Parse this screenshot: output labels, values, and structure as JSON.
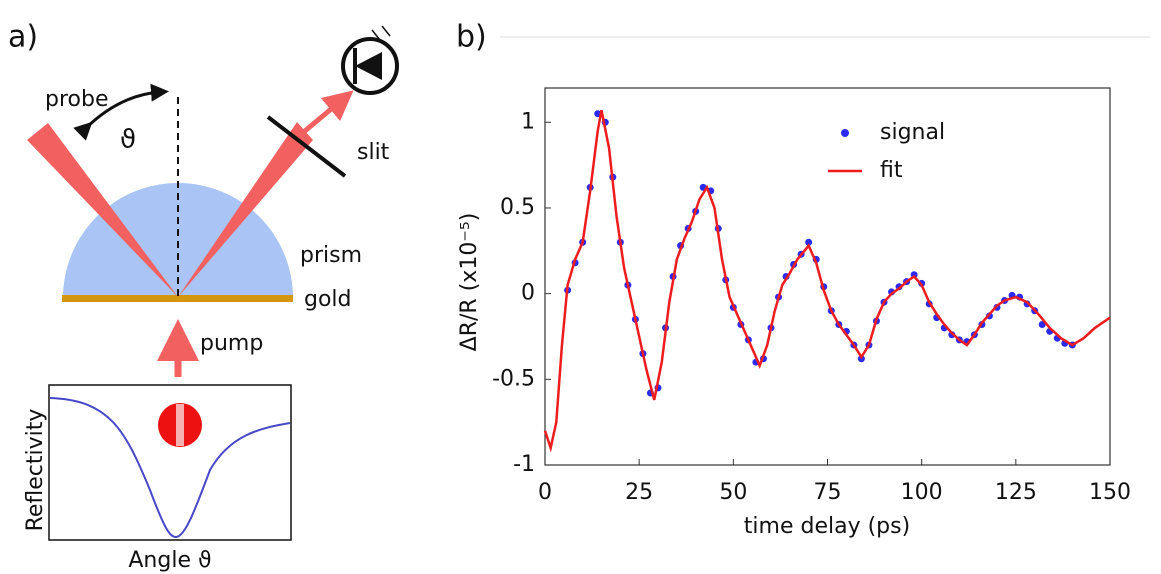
{
  "panels": {
    "a": "a)",
    "b": "b)"
  },
  "diagram": {
    "probe": "probe",
    "angle": "ϑ",
    "slit": "slit",
    "prism": "prism",
    "gold": "gold",
    "pump": "pump",
    "inset_ylabel": "Reflectivity",
    "inset_xlabel": "Angle ϑ"
  },
  "chart_data": {
    "type": "scatter",
    "xlabel": "time delay (ps)",
    "ylabel": "ΔR/R (x10⁻⁵)",
    "xlim": [
      0,
      150
    ],
    "xticks": [
      0,
      25,
      50,
      75,
      100,
      125,
      150
    ],
    "ylim": [
      -1,
      1.2
    ],
    "yticks": [
      -1,
      -0.5,
      0,
      0.5,
      1
    ],
    "legend": "upper right",
    "series": [
      {
        "name": "signal",
        "color": "#2b2bf0",
        "mode": "markers",
        "x": [
          6,
          8,
          10,
          12,
          14,
          16,
          18,
          20,
          22,
          24,
          26,
          28,
          30,
          32,
          34,
          36,
          38,
          40,
          42,
          44,
          46,
          48,
          50,
          52,
          54,
          56,
          58,
          60,
          62,
          64,
          66,
          68,
          70,
          72,
          74,
          76,
          78,
          80,
          82,
          84,
          86,
          88,
          90,
          92,
          94,
          96,
          98,
          100,
          102,
          104,
          106,
          108,
          110,
          112,
          114,
          116,
          118,
          120,
          122,
          124,
          126,
          128,
          130,
          132,
          134,
          136,
          138,
          140
        ],
        "values": [
          0.02,
          0.18,
          0.3,
          0.62,
          1.05,
          1.0,
          0.68,
          0.3,
          0.05,
          -0.15,
          -0.35,
          -0.58,
          -0.55,
          -0.2,
          0.1,
          0.28,
          0.38,
          0.48,
          0.62,
          0.6,
          0.38,
          0.08,
          -0.08,
          -0.18,
          -0.27,
          -0.4,
          -0.38,
          -0.2,
          -0.02,
          0.1,
          0.17,
          0.23,
          0.3,
          0.2,
          0.04,
          -0.1,
          -0.18,
          -0.22,
          -0.3,
          -0.38,
          -0.3,
          -0.16,
          -0.05,
          0.01,
          0.04,
          0.07,
          0.11,
          0.06,
          -0.06,
          -0.14,
          -0.2,
          -0.24,
          -0.27,
          -0.28,
          -0.24,
          -0.18,
          -0.13,
          -0.08,
          -0.04,
          -0.01,
          -0.02,
          -0.06,
          -0.1,
          -0.18,
          -0.22,
          -0.26,
          -0.29,
          -0.3
        ]
      },
      {
        "name": "fit",
        "color": "#ee1c1c",
        "mode": "lines",
        "x": [
          0,
          1.5,
          3,
          4.5,
          6,
          8,
          10,
          12,
          14,
          15,
          17,
          19,
          21,
          23,
          25,
          27,
          29,
          31,
          33,
          35,
          37,
          39,
          41,
          43,
          45,
          47,
          49,
          51,
          53,
          55,
          57,
          59,
          61,
          63,
          65,
          67,
          70,
          72,
          74,
          76,
          78,
          80,
          82,
          84,
          86,
          88,
          90,
          92,
          94,
          96,
          98,
          100,
          102,
          104,
          106,
          108,
          110,
          112,
          114,
          116,
          118,
          120,
          122,
          125,
          128,
          131,
          134,
          137,
          140,
          143,
          146,
          150
        ],
        "values": [
          -0.8,
          -0.9,
          -0.75,
          -0.3,
          0.05,
          0.2,
          0.3,
          0.6,
          0.95,
          1.07,
          0.85,
          0.45,
          0.15,
          -0.05,
          -0.25,
          -0.45,
          -0.62,
          -0.4,
          -0.05,
          0.2,
          0.32,
          0.42,
          0.55,
          0.62,
          0.5,
          0.2,
          -0.02,
          -0.12,
          -0.22,
          -0.32,
          -0.42,
          -0.3,
          -0.1,
          0.05,
          0.12,
          0.2,
          0.28,
          0.18,
          0.02,
          -0.1,
          -0.18,
          -0.24,
          -0.3,
          -0.37,
          -0.3,
          -0.15,
          -0.05,
          0,
          0.03,
          0.07,
          0.1,
          0.05,
          -0.05,
          -0.12,
          -0.18,
          -0.23,
          -0.27,
          -0.3,
          -0.24,
          -0.17,
          -0.12,
          -0.07,
          -0.04,
          -0.02,
          -0.05,
          -0.12,
          -0.2,
          -0.26,
          -0.3,
          -0.26,
          -0.2,
          -0.14
        ]
      }
    ]
  }
}
